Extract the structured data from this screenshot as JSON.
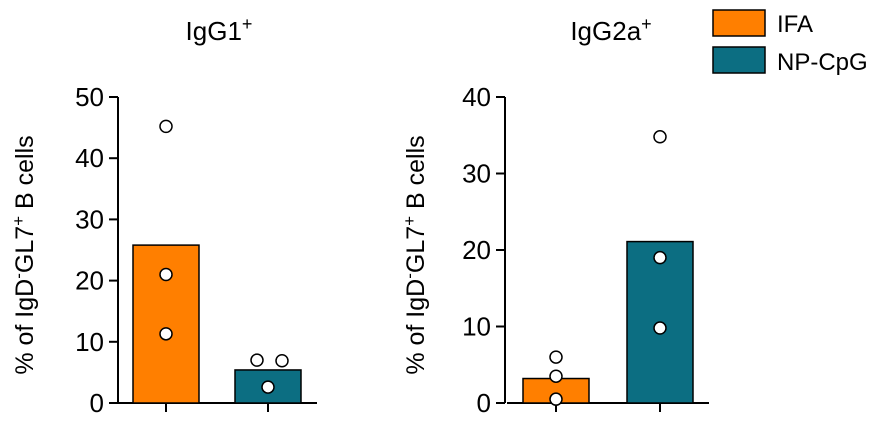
{
  "legend": {
    "position": "top-right",
    "items": [
      {
        "label": "IFA",
        "color": "#ff7f00"
      },
      {
        "label": "NP-CpG",
        "color": "#0c6e82"
      }
    ]
  },
  "ylabel": {
    "prefix": "% of IgD",
    "sup1": "-",
    "mid": "GL7",
    "sup2": "+",
    "suffix": " B cells"
  },
  "chart_data": [
    {
      "type": "bar",
      "title": "IgG1",
      "title_sup": "+",
      "categories": [
        "IFA",
        "NP-CpG"
      ],
      "values": [
        25.8,
        5.4
      ],
      "points": [
        [
          45.2,
          21.0,
          11.3
        ],
        [
          7.0,
          6.9,
          2.6
        ]
      ],
      "ylim": [
        0,
        50
      ],
      "yticks": [
        "0",
        "10",
        "20",
        "30",
        "40",
        "50"
      ],
      "ylabel": "% of IgD-GL7+ B cells"
    },
    {
      "type": "bar",
      "title": "IgG2a",
      "title_sup": "+",
      "categories": [
        "IFA",
        "NP-CpG"
      ],
      "values": [
        3.2,
        21.1
      ],
      "points": [
        [
          6.0,
          3.5,
          0.5
        ],
        [
          34.8,
          19.0,
          9.8
        ]
      ],
      "ylim": [
        0,
        40
      ],
      "yticks": [
        "0",
        "10",
        "20",
        "30",
        "40"
      ],
      "ylabel": "% of IgD-GL7+ B cells"
    }
  ]
}
